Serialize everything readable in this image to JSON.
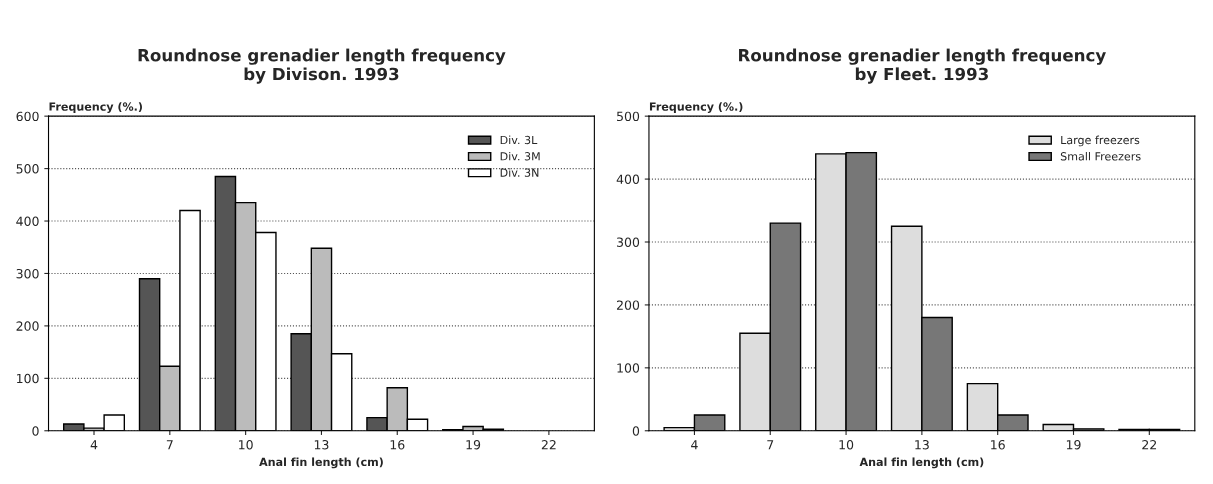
{
  "chart_data": [
    {
      "type": "bar",
      "title": "Roundnose grenadier length frequency\nby Divison. 1993",
      "xlabel": "Anal fin length (cm)",
      "ylabel": "Frequency (%.)",
      "categories": [
        "4",
        "7",
        "10",
        "13",
        "16",
        "19",
        "22"
      ],
      "ylim": [
        0,
        600
      ],
      "yticks": [
        0,
        100,
        200,
        300,
        400,
        500,
        600
      ],
      "grid": "y",
      "legend": "top right",
      "series": [
        {
          "name": "Div. 3L",
          "color": "#555555",
          "values": [
            13,
            290,
            485,
            185,
            25,
            2,
            null
          ]
        },
        {
          "name": "Div. 3M",
          "color": "#bbbbbb",
          "values": [
            5,
            123,
            435,
            348,
            82,
            8,
            null
          ]
        },
        {
          "name": "Div. 3N",
          "color": "#ffffff",
          "values": [
            30,
            420,
            378,
            147,
            22,
            3,
            null
          ]
        }
      ]
    },
    {
      "type": "bar",
      "title": "Roundnose grenadier length frequency\nby Fleet. 1993",
      "xlabel": "Anal fin length (cm)",
      "ylabel": "Frequency (%.)",
      "categories": [
        "4",
        "7",
        "10",
        "13",
        "16",
        "19",
        "22"
      ],
      "ylim": [
        0,
        500
      ],
      "yticks": [
        0,
        100,
        200,
        300,
        400,
        500
      ],
      "grid": "y",
      "legend": "top right",
      "series": [
        {
          "name": "Large freezers",
          "color": "#dddddd",
          "values": [
            5,
            155,
            440,
            325,
            75,
            10,
            2
          ]
        },
        {
          "name": "Small Freezers",
          "color": "#777777",
          "values": [
            25,
            330,
            442,
            180,
            25,
            3,
            2
          ]
        }
      ]
    }
  ]
}
